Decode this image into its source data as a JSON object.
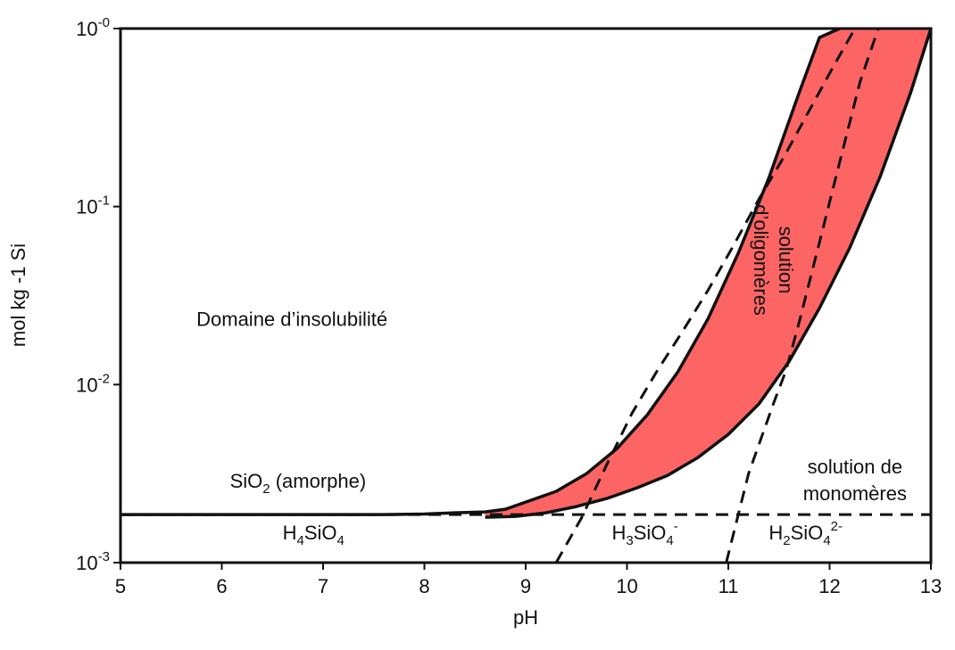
{
  "chart_data": {
    "type": "line",
    "title": "",
    "xlabel": "pH",
    "ylabel": "mol kg -1 Si",
    "xlim": [
      5,
      13
    ],
    "ylim_log10": [
      -3,
      0
    ],
    "yscale": "log",
    "grid": false,
    "x_ticks": [
      5,
      6,
      7,
      8,
      9,
      10,
      11,
      12,
      13
    ],
    "y_ticks": [
      {
        "exp": -3,
        "base": "10",
        "sup": "-3"
      },
      {
        "exp": -2,
        "base": "10",
        "sup": "-2"
      },
      {
        "exp": -1,
        "base": "10",
        "sup": "-1"
      },
      {
        "exp": 0,
        "base": "10",
        "sup": "-0"
      }
    ],
    "fill_color": "#fd6565",
    "series": [
      {
        "style": "solid",
        "x": [
          5,
          6,
          7,
          7.6,
          8.0,
          8.3,
          8.6,
          8.8,
          9.0,
          9.3,
          9.6,
          9.9,
          10.2,
          10.5,
          10.8,
          11.1,
          11.4,
          11.7,
          11.9,
          12.1
        ],
        "log_y": [
          -2.73,
          -2.73,
          -2.73,
          -2.73,
          -2.727,
          -2.72,
          -2.715,
          -2.7,
          -2.66,
          -2.6,
          -2.5,
          -2.36,
          -2.17,
          -1.93,
          -1.63,
          -1.26,
          -0.84,
          -0.36,
          -0.05,
          0.0
        ]
      },
      {
        "style": "solid",
        "x": [
          8.6,
          8.9,
          9.2,
          9.5,
          9.8,
          10.1,
          10.4,
          10.7,
          11.0,
          11.3,
          11.6,
          11.9,
          12.2,
          12.5,
          12.8,
          13.0
        ],
        "log_y": [
          -2.745,
          -2.74,
          -2.72,
          -2.685,
          -2.64,
          -2.58,
          -2.51,
          -2.41,
          -2.28,
          -2.11,
          -1.87,
          -1.57,
          -1.23,
          -0.83,
          -0.36,
          0.0
        ]
      },
      {
        "style": "dashed",
        "x": [
          5,
          13
        ],
        "log_y": [
          -2.73,
          -2.73
        ]
      },
      {
        "style": "dashed",
        "x": [
          9.3,
          9.55,
          9.8,
          10.05,
          10.3,
          10.55,
          10.8,
          11.05,
          11.3,
          11.55,
          11.8,
          12.05,
          12.25
        ],
        "log_y": [
          -3.0,
          -2.75,
          -2.45,
          -2.16,
          -1.92,
          -1.7,
          -1.47,
          -1.22,
          -0.96,
          -0.72,
          -0.46,
          -0.2,
          0.0
        ]
      },
      {
        "style": "dashed",
        "x": [
          10.98,
          11.2,
          11.45,
          11.57,
          11.7,
          11.9,
          12.1,
          12.3,
          12.48
        ],
        "log_y": [
          -3.0,
          -2.5,
          -2.1,
          -1.92,
          -1.65,
          -1.2,
          -0.75,
          -0.3,
          0.0
        ]
      }
    ],
    "annotations": [
      {
        "text": "Domaine d’insolubilité",
        "x": 5.75,
        "log_y": -1.67
      },
      {
        "text": "solution d’oligomères",
        "x": 11.5,
        "log_y": -1.3,
        "rotation": -90
      },
      {
        "text": "solution de monomères",
        "x": 12.25,
        "log_y": -2.5
      }
    ],
    "species_labels": [
      {
        "base": "SiO",
        "sub": "2",
        "rest": " (amorphe)",
        "x": 6.08,
        "log_y": -2.58
      },
      {
        "base": "H",
        "sub1": "4",
        "mid": "SiO",
        "sub2": "4",
        "sup": "",
        "x": 6.6,
        "log_y": -2.87
      },
      {
        "base": "H",
        "sub1": "3",
        "mid": "SiO",
        "sub2": "4",
        "sup": "-",
        "x": 9.85,
        "log_y": -2.87
      },
      {
        "base": "H",
        "sub1": "2",
        "mid": "SiO",
        "sub2": "4",
        "sup": "2-",
        "x": 11.4,
        "log_y": -2.87
      }
    ]
  }
}
